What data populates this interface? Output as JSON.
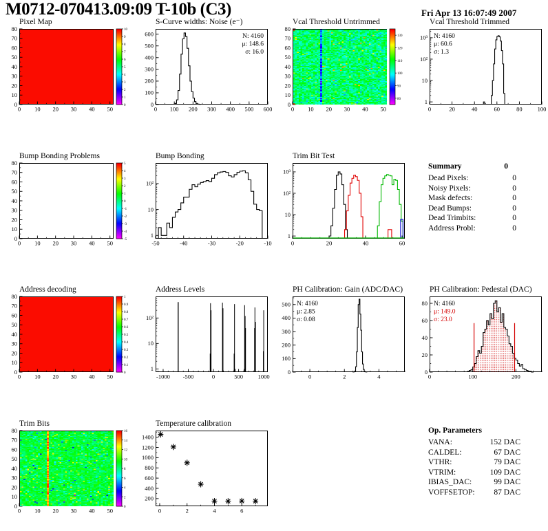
{
  "header": {
    "title": "M0712-070413.09:09 T-10b (C3)",
    "date": "Fri Apr 13 16:07:49 2007"
  },
  "summary": {
    "title": "Summary",
    "total": "0",
    "rows": [
      {
        "label": "Dead Pixels:",
        "value": "0"
      },
      {
        "label": "Noisy Pixels:",
        "value": "0"
      },
      {
        "label": "Mask defects:",
        "value": "0"
      },
      {
        "label": "Dead Bumps:",
        "value": "0"
      },
      {
        "label": "Dead Trimbits:",
        "value": "0"
      },
      {
        "label": "Address Probl:",
        "value": "0"
      }
    ]
  },
  "op_parameters": {
    "title": "Op. Parameters",
    "rows": [
      {
        "label": "VANA:",
        "value": "152 DAC"
      },
      {
        "label": "CALDEL:",
        "value": "67 DAC"
      },
      {
        "label": "VTHR:",
        "value": "79 DAC"
      },
      {
        "label": "VTRIM:",
        "value": "109 DAC"
      },
      {
        "label": "IBIAS_DAC:",
        "value": "99 DAC"
      },
      {
        "label": "VOFFSETOP:",
        "value": "87 DAC"
      }
    ]
  },
  "chart_data": [
    {
      "id": "pixel-map",
      "type": "heatmap",
      "title": "Pixel Map",
      "fill": "#fb0c00",
      "x": {
        "min": 0,
        "max": 52,
        "ticks": [
          0,
          10,
          20,
          30,
          40,
          50
        ],
        "minor": 2
      },
      "y": {
        "min": 0,
        "max": 80,
        "ticks": [
          0,
          10,
          20,
          30,
          40,
          50,
          60,
          70,
          80
        ],
        "minor": 2
      },
      "colorbar": {
        "min": 0,
        "max": 10,
        "labels": [
          0,
          1,
          2,
          3,
          4,
          5,
          6,
          7,
          8,
          9,
          10
        ]
      }
    },
    {
      "id": "scurve-noise",
      "type": "histogram",
      "title": "S-Curve widths: Noise (e⁻)",
      "x": {
        "min": 0,
        "max": 600,
        "ticks": [
          0,
          100,
          200,
          300,
          400,
          500,
          600
        ],
        "minor": 2
      },
      "y": {
        "min": 0,
        "max": 645,
        "ticks": [
          0,
          100,
          200,
          300,
          400,
          500,
          600
        ],
        "minor": 2
      },
      "series": [
        {
          "color": "#000000",
          "bins": {
            "start": 96,
            "width": 8,
            "counts": [
              3,
              10,
              40,
              120,
              260,
              430,
              560,
              610,
              580,
              480,
              330,
              200,
              110,
              55,
              25,
              10,
              4,
              2
            ]
          }
        }
      ],
      "stats": {
        "corner": "tr",
        "lines": [
          {
            "text": "N: 4160"
          },
          {
            "text": "μ: 148.6"
          },
          {
            "text": "σ: 16.0"
          }
        ]
      }
    },
    {
      "id": "vcal-threshold-untrimmed",
      "type": "heatmap",
      "title": "Vcal Threshold Untrimmed",
      "x": {
        "min": 0,
        "max": 52,
        "ticks": [
          0,
          10,
          20,
          30,
          40,
          50
        ],
        "minor": 2
      },
      "y": {
        "min": 0,
        "max": 80,
        "ticks": [
          0,
          10,
          20,
          30,
          40,
          50,
          60,
          70,
          80
        ],
        "minor": 2
      },
      "noise": {
        "seed": 20070413,
        "base": 0.52,
        "spread": 0.2,
        "outliers": [
          {
            "p": 0.08,
            "v": -0.1
          },
          {
            "p": 0.02,
            "v": 0.27
          }
        ],
        "stripe": {
          "col": 15,
          "base": 0.12,
          "spread": 0.3
        },
        "corner_red": true
      },
      "colorbar": {
        "min": 75,
        "max": 135,
        "labels": [
          80,
          90,
          100,
          110,
          120,
          130
        ]
      }
    },
    {
      "id": "vcal-threshold-trimmed",
      "type": "histogram",
      "title": "Vcal Threshold Trimmed",
      "x": {
        "min": 0,
        "max": 100,
        "ticks": [
          0,
          20,
          40,
          60,
          80,
          100
        ],
        "minor": 2
      },
      "y": {
        "log": true,
        "min": 0.75,
        "max": 2600
      },
      "series": [
        {
          "color": "#000000",
          "bins": {
            "start": 47,
            "width": 1,
            "counts": [
              0,
              1,
              0,
              0,
              0,
              0,
              0,
              0,
              2,
              10,
              60,
              300,
              800,
              1150,
              1250,
              1100,
              700,
              250,
              60,
              2.5
            ]
          }
        }
      ],
      "stats": {
        "corner": "tl",
        "lines": [
          {
            "text": "N: 4160"
          },
          {
            "text": "μ: 60.6"
          },
          {
            "text": "σ: 1.3"
          }
        ]
      }
    },
    {
      "id": "bump-bonding-problems",
      "type": "heatmap",
      "title": "Bump Bonding Problems",
      "x": {
        "min": 0,
        "max": 52,
        "ticks": [
          0,
          10,
          20,
          30,
          40,
          50
        ],
        "minor": 2
      },
      "y": {
        "min": 0,
        "max": 80,
        "ticks": [
          0,
          10,
          20,
          30,
          40,
          50,
          60,
          70,
          80
        ],
        "minor": 2
      },
      "colorbar": {
        "min": -5,
        "max": 5,
        "labels": [
          -5,
          -4,
          -3,
          -2,
          -1,
          0,
          1,
          2,
          3,
          4,
          5
        ]
      }
    },
    {
      "id": "bump-bonding",
      "type": "histogram",
      "title": "Bump Bonding",
      "x": {
        "min": -50,
        "max": -10,
        "ticks": [
          -50,
          -40,
          -30,
          -20,
          -10
        ],
        "minor": 5
      },
      "y": {
        "log": true,
        "min": 0.75,
        "max": 620
      },
      "series": [
        {
          "color": "#000000",
          "bins": {
            "start": -49,
            "width": 1,
            "counts": [
              2,
              1,
              1,
              3,
              2,
              5,
              8,
              10,
              18,
              30,
              30,
              60,
              90,
              75,
              95,
              110,
              120,
              130,
              120,
              160,
              220,
              260,
              280,
              290,
              270,
              200,
              180,
              220,
              270,
              300,
              310,
              260,
              140,
              50,
              16,
              10,
              9
            ]
          }
        }
      ]
    },
    {
      "id": "trim-bit-test",
      "type": "histogram",
      "title": "Trim Bit Test",
      "x": {
        "min": 0,
        "max": 61.5,
        "ticks": [
          0,
          20,
          40,
          60
        ],
        "minor": 4
      },
      "y": {
        "log": true,
        "min": 0.75,
        "max": 2600
      },
      "baseline": "#00b800",
      "series": [
        {
          "color": "#000000",
          "bins": {
            "start": 20,
            "width": 1,
            "counts": [
              1,
              3,
              20,
              150,
              700,
              1000,
              800,
              250,
              30,
              2
            ]
          }
        },
        {
          "color": "#e00000",
          "bins": {
            "start": 28.5,
            "width": 1,
            "counts": [
              2,
              15,
              80,
              300,
              500,
              700,
              600,
              400,
              100,
              8
            ]
          }
        },
        {
          "color": "#e00000",
          "bins": {
            "start": 52.3,
            "width": 2,
            "counts": [
              2
            ]
          }
        },
        {
          "color": "#00b800",
          "bins": {
            "start": 46.5,
            "width": 1,
            "counts": [
              3,
              40,
              250,
              500,
              650,
              750,
              700,
              650,
              250,
              450,
              400,
              150,
              30,
              5
            ]
          }
        },
        {
          "color": "#0000d0",
          "bins": {
            "start": 59.2,
            "width": 1.3,
            "counts": [
              6
            ]
          }
        }
      ]
    },
    {
      "id": "address-decoding",
      "type": "heatmap",
      "title": "Address decoding",
      "fill": "#fb0c00",
      "x": {
        "min": 0,
        "max": 52,
        "ticks": [
          0,
          10,
          20,
          30,
          40,
          50
        ],
        "minor": 2
      },
      "y": {
        "min": 0,
        "max": 80,
        "ticks": [
          0,
          10,
          20,
          30,
          40,
          50,
          60,
          70,
          80
        ],
        "minor": 2
      },
      "colorbar": {
        "min": 0,
        "max": 1,
        "labels": [
          0,
          0.1,
          0.2,
          0.3,
          0.4,
          0.5,
          0.6,
          0.7,
          0.8,
          0.9,
          1
        ]
      }
    },
    {
      "id": "address-levels",
      "type": "histogram",
      "title": "Address Levels",
      "x": {
        "min": -1150,
        "max": 1080,
        "ticks": [
          -1000,
          -500,
          0,
          500,
          1000
        ],
        "minor": 5
      },
      "y": {
        "log": true,
        "min": 0.75,
        "max": 700
      },
      "spikes": [
        [
          -710,
          18,
          420
        ],
        [
          -72,
          4,
          4
        ],
        [
          -65,
          9,
          380
        ],
        [
          -54,
          6,
          200
        ],
        [
          172,
          10,
          400
        ],
        [
          183,
          7,
          240
        ],
        [
          404,
          4,
          4
        ],
        [
          412,
          9,
          350
        ],
        [
          424,
          4,
          1
        ],
        [
          604,
          3,
          1
        ],
        [
          612,
          9,
          320
        ],
        [
          623,
          6,
          120
        ],
        [
          631,
          5,
          40
        ],
        [
          810,
          5,
          40
        ],
        [
          817,
          9,
          260
        ],
        [
          828,
          6,
          70
        ],
        [
          985,
          5,
          5
        ],
        [
          992,
          9,
          200
        ]
      ]
    },
    {
      "id": "ph-calibration-gain",
      "type": "histogram",
      "title": "PH Calibration: Gain (ADC/DAC)",
      "x": {
        "min": -1,
        "max": 5.5,
        "ticks": [
          0,
          2,
          4
        ],
        "minor": 4
      },
      "y": {
        "min": 0,
        "max": 560,
        "ticks": [
          0,
          100,
          200,
          300,
          400,
          500
        ],
        "minor": 2
      },
      "series": [
        {
          "color": "#000000",
          "bins": {
            "start": 2.5,
            "width": 0.05,
            "counts": [
              1,
              2,
              8,
              40,
              150,
              330,
              500,
              540,
              430,
              310,
              150,
              60,
              20,
              6,
              2,
              1
            ]
          }
        }
      ],
      "stats": {
        "corner": "tl",
        "lines": [
          {
            "text": "N: 4160"
          },
          {
            "text": "μ: 2.85"
          },
          {
            "text": "σ: 0.08"
          }
        ]
      }
    },
    {
      "id": "ph-calibration-pedestal",
      "type": "histogram",
      "title": "PH Calibration: Pedestal (DAC)",
      "x": {
        "min": 0,
        "max": 260,
        "ticks": [
          0,
          100,
          200
        ],
        "minor": 5
      },
      "y": {
        "min": 0,
        "max": 88,
        "ticks": [
          0,
          20,
          40,
          60,
          80
        ],
        "minor": 2
      },
      "series": [
        {
          "color": "#000000",
          "bins": {
            "start": 88,
            "width": 4,
            "counts": [
              1,
              2,
              3,
              6,
              10,
              18,
              25,
              22,
              30,
              46,
              50,
              60,
              55,
              68,
              62,
              80,
              83,
              70,
              75,
              58,
              68,
              52,
              50,
              42,
              33,
              30,
              22,
              16,
              14,
              10,
              7,
              9,
              4,
              3,
              2,
              1,
              1,
              0
            ]
          }
        }
      ],
      "fill_region": {
        "from": 103,
        "to": 197
      },
      "vlines": [
        {
          "x": 103,
          "h": 57,
          "color": "#d40000"
        },
        {
          "x": 197,
          "h": 57,
          "color": "#d40000"
        }
      ],
      "stats": {
        "corner": "tl",
        "lines": [
          {
            "text": "N: 4160"
          },
          {
            "text": "μ: 149.0",
            "color": "#d40000"
          },
          {
            "text": "σ: 23.0",
            "color": "#d40000"
          }
        ]
      }
    },
    {
      "id": "trim-bits",
      "type": "heatmap",
      "title": "Trim Bits",
      "x": {
        "min": 0,
        "max": 52,
        "ticks": [
          0,
          10,
          20,
          30,
          40,
          50
        ],
        "minor": 2
      },
      "y": {
        "min": 0,
        "max": 80,
        "ticks": [
          0,
          10,
          20,
          30,
          40,
          50,
          60,
          70,
          80
        ],
        "minor": 2
      },
      "noise": {
        "seed": 424242,
        "base": 0.56,
        "spread": 0.14,
        "outliers": [
          {
            "p": 0.08,
            "v": -0.13
          },
          {
            "p": 0.04,
            "v": 0.2
          },
          {
            "p": 0.01,
            "v": -0.3
          }
        ],
        "stripe": {
          "col": 15,
          "base": 0.78,
          "spread": 0.2
        }
      },
      "colorbar": {
        "min": 0,
        "max": 16,
        "labels": [
          0,
          2,
          4,
          6,
          8,
          10,
          12,
          14,
          16
        ]
      }
    },
    {
      "id": "temperature-calibration",
      "type": "scatter",
      "title": "Temperature calibration",
      "x": {
        "min": -0.3,
        "max": 7.9,
        "ticks": [
          0,
          2,
          4,
          6
        ],
        "minor": 2
      },
      "y": {
        "min": 50,
        "max": 1530,
        "ticks": [
          200,
          400,
          600,
          800,
          1000,
          1200,
          1400
        ],
        "minor": 2
      },
      "points": [
        [
          0.07,
          1455
        ],
        [
          1,
          1210
        ],
        [
          2,
          900
        ],
        [
          3,
          480
        ],
        [
          4,
          150
        ],
        [
          5,
          148
        ],
        [
          6,
          152
        ],
        [
          7,
          150
        ]
      ]
    }
  ]
}
